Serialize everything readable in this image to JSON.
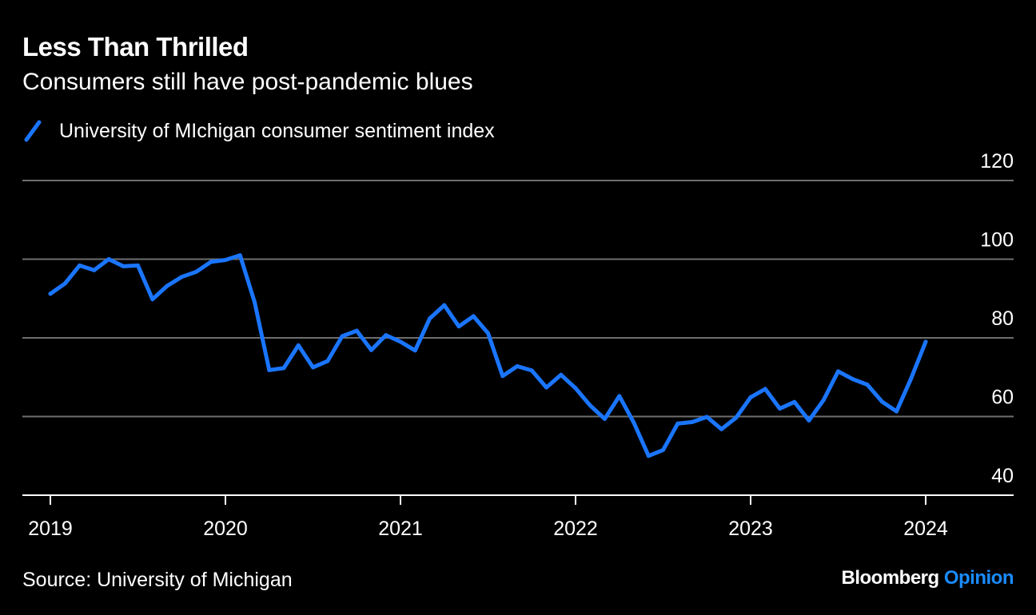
{
  "chart_data": {
    "type": "line",
    "title": "Less Than Thrilled",
    "subtitle": "Consumers still have post-pandemic blues",
    "legend": [
      {
        "name": "University of MIchigan consumer sentiment index",
        "color": "#1a75ff"
      }
    ],
    "x_tick_labels": [
      "2019",
      "2020",
      "2021",
      "2022",
      "2023",
      "2024"
    ],
    "y_ticks": [
      40,
      60,
      80,
      100,
      120
    ],
    "ylim": [
      40,
      120
    ],
    "xlim": [
      "2019-01",
      "2024-01"
    ],
    "grid": true,
    "legend_position": "top-left",
    "source": "Source: University of Michigan",
    "series": [
      {
        "name": "University of MIchigan consumer sentiment index",
        "color": "#1a75ff",
        "x": [
          "2019-01",
          "2019-02",
          "2019-03",
          "2019-04",
          "2019-05",
          "2019-06",
          "2019-07",
          "2019-08",
          "2019-09",
          "2019-10",
          "2019-11",
          "2019-12",
          "2020-01",
          "2020-02",
          "2020-03",
          "2020-04",
          "2020-05",
          "2020-06",
          "2020-07",
          "2020-08",
          "2020-09",
          "2020-10",
          "2020-11",
          "2020-12",
          "2021-01",
          "2021-02",
          "2021-03",
          "2021-04",
          "2021-05",
          "2021-06",
          "2021-07",
          "2021-08",
          "2021-09",
          "2021-10",
          "2021-11",
          "2021-12",
          "2022-01",
          "2022-02",
          "2022-03",
          "2022-04",
          "2022-05",
          "2022-06",
          "2022-07",
          "2022-08",
          "2022-09",
          "2022-10",
          "2022-11",
          "2022-12",
          "2023-01",
          "2023-02",
          "2023-03",
          "2023-04",
          "2023-05",
          "2023-06",
          "2023-07",
          "2023-08",
          "2023-09",
          "2023-10",
          "2023-11",
          "2023-12",
          "2024-01"
        ],
        "values": [
          91.2,
          93.8,
          98.4,
          97.2,
          100.0,
          98.2,
          98.4,
          89.8,
          93.2,
          95.5,
          96.8,
          99.3,
          99.8,
          101.0,
          89.1,
          71.8,
          72.3,
          78.1,
          72.5,
          74.1,
          80.4,
          81.8,
          76.9,
          80.7,
          79.0,
          76.8,
          84.9,
          88.3,
          82.9,
          85.5,
          81.2,
          70.3,
          72.8,
          71.7,
          67.4,
          70.6,
          67.2,
          62.8,
          59.4,
          65.2,
          58.4,
          50.0,
          51.5,
          58.2,
          58.6,
          59.9,
          56.8,
          59.7,
          64.9,
          67.0,
          62.0,
          63.7,
          59.0,
          64.2,
          71.5,
          69.5,
          68.1,
          63.8,
          61.3,
          69.7,
          79.0
        ]
      }
    ]
  },
  "brand": {
    "name": "Bloomberg",
    "suffix": "Opinion"
  }
}
